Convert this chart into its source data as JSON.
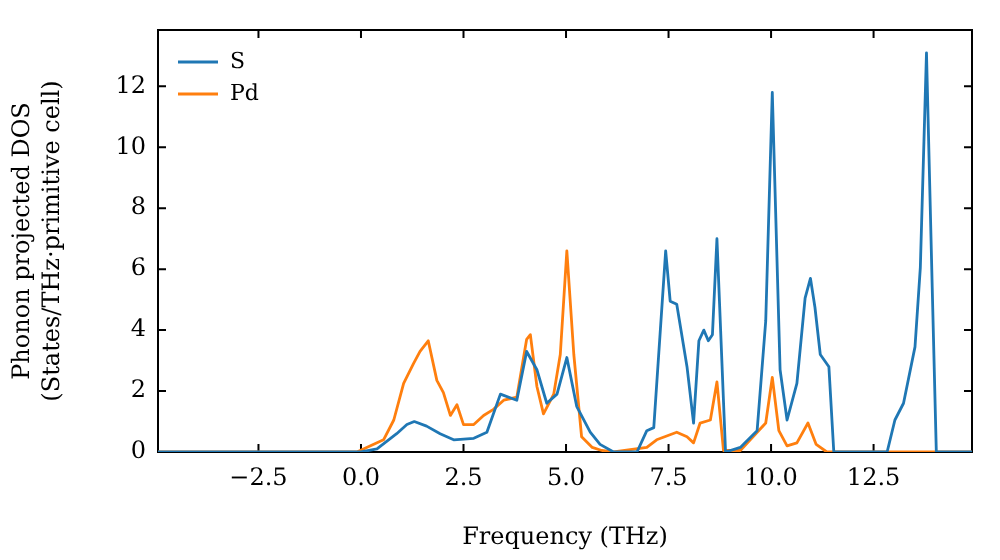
{
  "chart_data": {
    "type": "line",
    "xlabel": "Frequency (THz)",
    "ylabel": "Phonon projected DOS\n(States/THz·primitive cell)",
    "xlim": [
      -4.95,
      14.9
    ],
    "ylim": [
      0,
      13.85
    ],
    "xticks": [
      {
        "value": -2.5,
        "label": "−2.5"
      },
      {
        "value": 0,
        "label": "0.0"
      },
      {
        "value": 2.5,
        "label": "2.5"
      },
      {
        "value": 5,
        "label": "5.0"
      },
      {
        "value": 7.5,
        "label": "7.5"
      },
      {
        "value": 10,
        "label": "10.0"
      },
      {
        "value": 12.5,
        "label": "12.5"
      }
    ],
    "yticks": [
      0,
      2,
      4,
      6,
      8,
      10,
      12
    ],
    "legend": "top left",
    "grid": false,
    "series": [
      {
        "name": "S",
        "color": "#1f77b4",
        "x": [
          -4.95,
          0.0,
          0.39,
          0.87,
          1.12,
          1.3,
          1.6,
          1.93,
          2.26,
          2.75,
          3.07,
          3.4,
          3.8,
          4.04,
          4.29,
          4.53,
          4.78,
          5.02,
          5.26,
          5.59,
          5.83,
          6.16,
          6.73,
          6.97,
          7.14,
          7.43,
          7.54,
          7.7,
          7.95,
          8.11,
          8.24,
          8.36,
          8.47,
          8.57,
          8.68,
          8.89,
          9.25,
          9.66,
          9.87,
          10.03,
          10.22,
          10.39,
          10.63,
          10.83,
          10.96,
          11.07,
          11.2,
          11.41,
          11.53,
          12.83,
          13.02,
          13.23,
          13.51,
          13.64,
          13.79,
          13.93,
          14.03,
          14.9
        ],
        "values": [
          0,
          0,
          0.1,
          0.6,
          0.9,
          1.0,
          0.85,
          0.6,
          0.4,
          0.45,
          0.65,
          1.9,
          1.7,
          3.3,
          2.7,
          1.6,
          1.9,
          3.1,
          1.5,
          0.65,
          0.25,
          0,
          0,
          0.7,
          0.8,
          6.6,
          4.95,
          4.85,
          2.8,
          0.95,
          3.65,
          4.0,
          3.65,
          3.85,
          7.0,
          0,
          0.15,
          0.7,
          4.3,
          11.8,
          2.7,
          1.05,
          2.25,
          5.05,
          5.7,
          4.75,
          3.2,
          2.8,
          0,
          0,
          1.05,
          1.6,
          3.45,
          6.05,
          13.1,
          5.4,
          0,
          0
        ]
      },
      {
        "name": "Pd",
        "color": "#ff7f0e",
        "x": [
          -4.95,
          -0.1,
          0.55,
          0.8,
          1.04,
          1.28,
          1.44,
          1.64,
          1.85,
          2.01,
          2.18,
          2.34,
          2.5,
          2.75,
          2.99,
          3.23,
          3.48,
          3.8,
          4.04,
          4.13,
          4.29,
          4.45,
          4.7,
          4.86,
          5.02,
          5.19,
          5.38,
          5.64,
          5.87,
          6.16,
          6.97,
          7.21,
          7.7,
          7.95,
          8.11,
          8.27,
          8.52,
          8.68,
          8.84,
          9.25,
          9.87,
          10.03,
          10.19,
          10.39,
          10.63,
          10.9,
          11.1,
          11.36,
          14.9
        ],
        "values": [
          0,
          0,
          0.4,
          1.05,
          2.25,
          2.9,
          3.3,
          3.65,
          2.35,
          1.95,
          1.2,
          1.55,
          0.9,
          0.9,
          1.2,
          1.4,
          1.7,
          1.8,
          3.7,
          3.85,
          2.15,
          1.25,
          1.9,
          3.2,
          6.6,
          3.2,
          0.5,
          0.15,
          0.05,
          0,
          0.15,
          0.4,
          0.65,
          0.5,
          0.3,
          0.95,
          1.05,
          2.3,
          0.05,
          0.05,
          0.95,
          2.45,
          0.7,
          0.2,
          0.3,
          0.95,
          0.25,
          0,
          0
        ]
      }
    ]
  }
}
